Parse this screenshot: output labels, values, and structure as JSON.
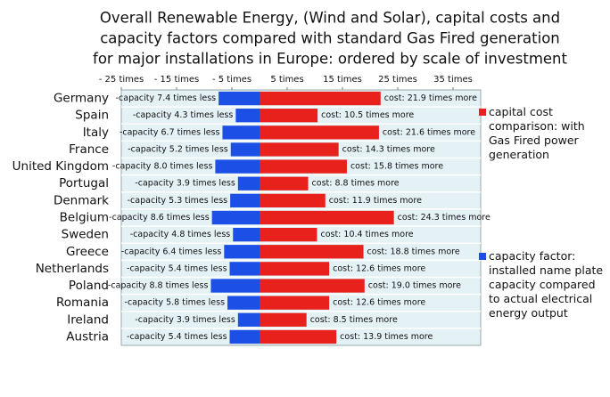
{
  "chart_data": {
    "type": "diverging-bar",
    "title": [
      "Overall Renewable Energy, (Wind and Solar), capital costs and",
      "capacity factors compared with standard Gas Fired generation",
      "for major installations in Europe:  ordered by scale of investment"
    ],
    "categories": [
      "Germany",
      "Spain",
      "Italy",
      "France",
      "United Kingdom",
      "Portugal",
      "Denmark",
      "Belgium",
      "Sweden",
      "Greece",
      "Netherlands",
      "Poland",
      "Romania",
      "Ireland",
      "Austria"
    ],
    "series": [
      {
        "name": "capital cost comparison: with Gas Fired power generation",
        "color": "#e8211c",
        "values": [
          21.9,
          10.5,
          21.6,
          14.3,
          15.8,
          8.8,
          11.9,
          24.3,
          10.4,
          18.8,
          12.6,
          19.0,
          12.6,
          8.5,
          13.9
        ],
        "value_labels": [
          "cost: 21.9 times more",
          "cost: 10.5 times more",
          "cost: 21.6 times more",
          "cost: 14.3 times more",
          "cost: 15.8 times more",
          "cost: 8.8 times more",
          "cost: 11.9 times more",
          "cost: 24.3 times more",
          "cost: 10.4 times more",
          "cost: 18.8 times more",
          "cost: 12.6 times more",
          "cost: 19.0 times more",
          "cost: 12.6 times more",
          "cost: 8.5 times more",
          "cost: 13.9 times more"
        ]
      },
      {
        "name": "capacity factor: installed name plate capacity compared to actual electrical energy output",
        "color": "#1c4fe6",
        "values": [
          -7.4,
          -4.3,
          -6.7,
          -5.2,
          -8.0,
          -3.9,
          -5.3,
          -8.6,
          -4.8,
          -6.4,
          -5.4,
          -8.8,
          -5.8,
          -3.9,
          -5.4
        ],
        "value_labels": [
          "-capacity 7.4 times less",
          "-capacity 4.3 times less",
          "-capacity 6.7 times less",
          "-capacity 5.2 times less",
          "-capacity 8.0 times less",
          "-capacity 3.9 times less",
          "-capacity 5.3 times less",
          "-capacity 8.6 times less",
          "-capacity 4.8 times less",
          "-capacity 6.4 times less",
          "-capacity 5.4 times less",
          "-capacity 8.8 times less",
          "-capacity 5.8 times less",
          "-capacity 3.9 times less",
          "-capacity 5.4 times less"
        ]
      }
    ],
    "xlim": [
      -25,
      40
    ],
    "xticks": [
      {
        "value": -25,
        "label": "- 25 times"
      },
      {
        "value": -15,
        "label": "- 15 times"
      },
      {
        "value": -5,
        "label": "- 5 times"
      },
      {
        "value": 5,
        "label": "5 times"
      },
      {
        "value": 15,
        "label": "15 times"
      },
      {
        "value": 25,
        "label": "25 times"
      },
      {
        "value": 35,
        "label": "35 times"
      }
    ]
  }
}
